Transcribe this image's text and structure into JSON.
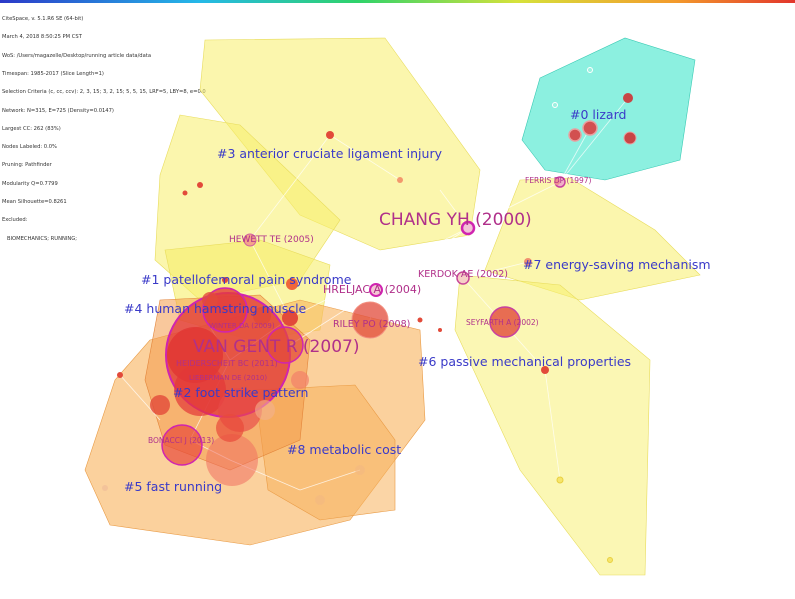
{
  "header": {
    "lines": [
      "CiteSpace, v. 5.1.R6 SE (64-bit)",
      "March 4, 2018 8:50:25 PM CST",
      "WoS: /Users/magazelle/Desktop/running article data/data",
      "Timespan: 1985-2017 (Slice Length=1)",
      "Selection Criteria (c, cc, ccv): 2, 3, 15; 3, 2, 15; 5, 5, 15, LRF=5, LBY=8, e=0.0",
      "Network: N=315, E=725 (Density=0.0147)",
      "Largest CC: 262 (83%)",
      "Nodes Labeled: 0.0%",
      "Pruning: Pathfinder",
      "Modularity Q=0.7799",
      "Mean Silhouette=0.8261",
      "Excluded:",
      "   BIOMECHANICS; RUNNING;"
    ]
  },
  "colors": {
    "cluster_yellow": "#f7ef6a",
    "cluster_orange": "#f8b25c",
    "cluster_teal": "#4fe8cf",
    "cluster_label": "#3a3ac8",
    "author_label": "#b0308a",
    "node_red": "#e2413a"
  },
  "clusters": [
    {
      "id": "c0",
      "label": "#0 lizard"
    },
    {
      "id": "c1",
      "label": "#1 patellofemoral pain syndrome"
    },
    {
      "id": "c2",
      "label": "#2 foot strike pattern"
    },
    {
      "id": "c3",
      "label": "#3 anterior cruciate ligament injury"
    },
    {
      "id": "c4",
      "label": "#4 human hamstring muscle"
    },
    {
      "id": "c5",
      "label": "#5 fast running"
    },
    {
      "id": "c6",
      "label": "#6 passive mechanical properties"
    },
    {
      "id": "c7",
      "label": "#7 energy-saving mechanism"
    },
    {
      "id": "c8",
      "label": "#8 metabolic cost"
    }
  ],
  "authors": [
    {
      "id": "chang",
      "label": "CHANG YH (2000)"
    },
    {
      "id": "vangent",
      "label": "VAN GENT R (2007)"
    },
    {
      "id": "ferris",
      "label": "FERRIS DP (1997)"
    },
    {
      "id": "hewett",
      "label": "HEWETT TE (2005)"
    },
    {
      "id": "kerdok",
      "label": "KERDOK AE (2002)"
    },
    {
      "id": "hreljac",
      "label": "HRELJAC A (2004)"
    },
    {
      "id": "riley",
      "label": "RILEY PO (2008)"
    },
    {
      "id": "seyfarth",
      "label": "SEYFARTH A (2002)"
    },
    {
      "id": "winter",
      "label": "WINTER DA (2009)"
    },
    {
      "id": "heiderscheit",
      "label": "HEIDERSCHEIT BC (2011)"
    },
    {
      "id": "lieberman",
      "label": "LIEBERMAN DE (2010)"
    },
    {
      "id": "bonacci",
      "label": "BONACCI J (2013)"
    }
  ]
}
